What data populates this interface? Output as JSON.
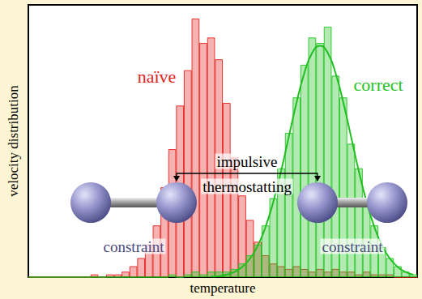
{
  "chart_data": {
    "type": "histogram",
    "xlabel": "temperature",
    "ylabel": "velocity distribution",
    "xlim": [
      0,
      100
    ],
    "ylim": [
      0,
      100
    ],
    "tick_labels": false,
    "grid": false,
    "bins": [
      0,
      2,
      4,
      6,
      8,
      10,
      12,
      14,
      16,
      18,
      20,
      22,
      24,
      26,
      28,
      30,
      32,
      34,
      36,
      38,
      40,
      42,
      44,
      46,
      48,
      50,
      52,
      54,
      56,
      58,
      60,
      62,
      64,
      66,
      68,
      70,
      72,
      74,
      76,
      78,
      80,
      82,
      84,
      86,
      88,
      90,
      92,
      94,
      96,
      98,
      100
    ],
    "series": [
      {
        "name": "naïve",
        "type": "bar",
        "color": "#e3221f",
        "values": [
          0,
          0,
          0,
          0,
          0,
          0,
          0,
          0,
          1,
          0,
          1,
          1,
          2,
          4,
          7,
          12,
          19,
          33,
          47,
          63,
          76,
          95,
          86,
          88,
          80,
          64,
          44,
          30,
          21,
          13,
          8,
          5,
          4,
          3,
          4,
          3,
          2,
          3,
          2,
          3,
          2,
          2,
          1,
          2,
          1,
          1,
          1,
          0,
          0,
          0
        ]
      },
      {
        "name": "correct",
        "type": "bar",
        "color": "#22c422",
        "values": [
          0,
          0,
          0,
          0,
          0,
          0,
          0,
          0,
          0,
          0,
          0,
          0,
          0,
          0,
          0,
          0,
          0,
          0,
          1,
          0,
          1,
          2,
          1,
          2,
          2,
          2,
          3,
          5,
          8,
          12,
          19,
          29,
          40,
          53,
          66,
          78,
          88,
          86,
          92,
          74,
          66,
          49,
          40,
          26,
          19,
          11,
          7,
          4,
          2,
          1
        ]
      },
      {
        "type": "line",
        "color": "#1fbf1f",
        "line_style": "solid",
        "values": [
          null,
          null,
          null,
          null,
          null,
          null,
          null,
          null,
          null,
          null,
          null,
          null,
          null,
          null,
          null,
          null,
          null,
          null,
          null,
          null,
          null,
          null,
          null,
          0.2,
          0.4,
          0.9,
          1.9,
          3.7,
          6.8,
          11.5,
          18.4,
          27.6,
          38.9,
          51.6,
          64.2,
          75,
          82.4,
          85,
          82.4,
          75,
          64.2,
          51.6,
          38.9,
          27.6,
          18.4,
          11.5,
          6.8,
          3.7,
          1.9,
          0.9
        ]
      }
    ],
    "annotation": "impulsive thermostatting",
    "molecule_labels": [
      "constraint",
      "constraint"
    ]
  }
}
